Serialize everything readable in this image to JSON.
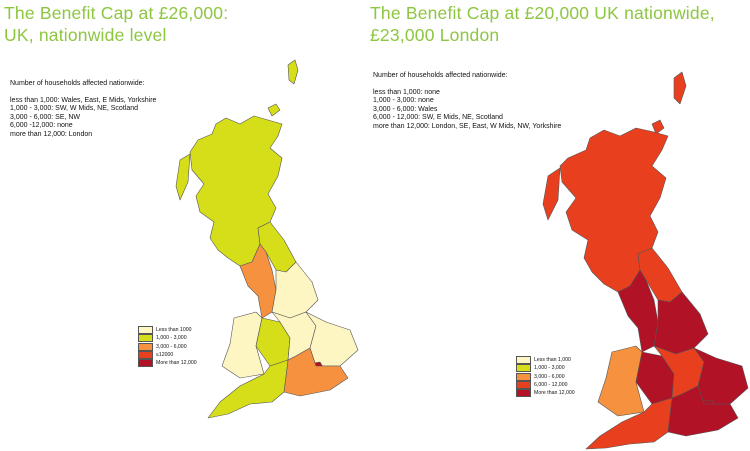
{
  "colors": {
    "title": "#8dc63f",
    "less_than_1000": "#fdf6c3",
    "1000_3000": "#d6de1a",
    "3000_6000": "#f5913f",
    "6000_12000": "#e8401f",
    "more_than_12000": "#b11226"
  },
  "left": {
    "title_line1": "The Benefit Cap at £26,000:",
    "title_line2": "UK, nationwide level",
    "info": {
      "heading": "Number of households affected nationwide:",
      "lines": [
        "less than 1,000: Wales, East, E Mids, Yorkshire",
        "1,000 - 3,000: SW, W Mids, NE, Scotland",
        "3,000 - 6,000: SE, NW",
        "6,000 -12,000: none",
        "more than 12,000: London"
      ]
    },
    "legend": [
      {
        "label": "Less than 1000",
        "color": "#fdf6c3"
      },
      {
        "label": "1,000 -  3,000",
        "color": "#d6de1a"
      },
      {
        "label": "3,000 - 6,000",
        "color": "#f5913f"
      },
      {
        "label": "≤12000",
        "color": "#e8401f"
      },
      {
        "label": "More than 12,000",
        "color": "#b11226"
      }
    ],
    "regions": {
      "scotland": "#d6de1a",
      "north_east": "#d6de1a",
      "north_west": "#f5913f",
      "yorkshire": "#fdf6c3",
      "wales": "#fdf6c3",
      "west_midlands": "#d6de1a",
      "east_midlands": "#fdf6c3",
      "east": "#fdf6c3",
      "london": "#b11226",
      "south_east": "#f5913f",
      "south_west": "#d6de1a"
    }
  },
  "right": {
    "title_line1": "The Benefit Cap at £20,000 UK nationwide,",
    "title_line2": "£23,000 London",
    "info": {
      "heading": "Number of households affected nationwide:",
      "lines": [
        "less than 1,000: none",
        "1,000 - 3,000: none",
        "3,000 - 6,000: Wales",
        "6,000 - 12,000: SW, E Mids, NE, Scotland",
        "more than 12,000: London, SE, East, W Mids, NW, Yorkshire"
      ]
    },
    "legend": [
      {
        "label": "Less than 1,000",
        "color": "#fdf6c3"
      },
      {
        "label": "1,000 - 3,000",
        "color": "#d6de1a"
      },
      {
        "label": "3,000 - 6,000",
        "color": "#f5913f"
      },
      {
        "label": "6,000 - 12,000",
        "color": "#e8401f"
      },
      {
        "label": "More than 12,000",
        "color": "#b11226"
      }
    ],
    "regions": {
      "scotland": "#e8401f",
      "north_east": "#e8401f",
      "north_west": "#b11226",
      "yorkshire": "#b11226",
      "wales": "#f5913f",
      "west_midlands": "#b11226",
      "east_midlands": "#e8401f",
      "east": "#b11226",
      "london": "#b11226",
      "south_east": "#b11226",
      "south_west": "#e8401f"
    }
  }
}
